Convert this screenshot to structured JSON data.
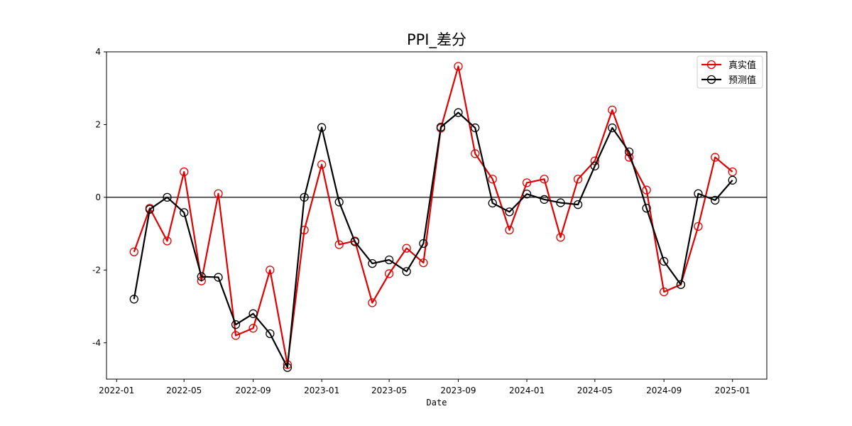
{
  "chart_data": {
    "type": "line",
    "title": "PPI_差分",
    "xlabel": "Date",
    "ylabel": "",
    "ylim": [
      -5.0,
      4.0
    ],
    "yticks": [
      -4,
      -2,
      0,
      2,
      4
    ],
    "xlim": [
      "2021-12-14",
      "2025-03-03"
    ],
    "xticks": [
      "2022-01",
      "2022-05",
      "2022-09",
      "2023-01",
      "2023-05",
      "2023-09",
      "2024-01",
      "2024-05",
      "2024-09",
      "2025-01"
    ],
    "zero_line": true,
    "grid": false,
    "legend_position": "top-right",
    "x": [
      "2022-02",
      "2022-03",
      "2022-04",
      "2022-05",
      "2022-06",
      "2022-07",
      "2022-08",
      "2022-09",
      "2022-10",
      "2022-11",
      "2022-12",
      "2023-01",
      "2023-02",
      "2023-03",
      "2023-04",
      "2023-05",
      "2023-06",
      "2023-07",
      "2023-08",
      "2023-09",
      "2023-10",
      "2023-11",
      "2023-12",
      "2024-01",
      "2024-02",
      "2024-03",
      "2024-04",
      "2024-05",
      "2024-06",
      "2024-07",
      "2024-08",
      "2024-09",
      "2024-10",
      "2024-11",
      "2024-12",
      "2025-01"
    ],
    "series": [
      {
        "name": "真实值",
        "color": "#e00000",
        "values": [
          -1.5,
          -0.3,
          -1.2,
          0.7,
          -2.3,
          0.1,
          -3.8,
          -3.6,
          -2.0,
          -4.6,
          -0.9,
          0.9,
          -1.3,
          -1.2,
          -2.9,
          -2.1,
          -1.4,
          -1.8,
          1.9,
          3.6,
          1.2,
          0.5,
          -0.9,
          0.4,
          0.5,
          -1.1,
          0.5,
          1.0,
          2.4,
          1.1,
          0.2,
          -2.6,
          -2.4,
          -0.8,
          1.1,
          0.7
        ]
      },
      {
        "name": "预测值",
        "color": "#000000",
        "values": [
          -2.8,
          -0.33,
          0.0,
          -0.42,
          -2.18,
          -2.2,
          -3.5,
          -3.2,
          -3.75,
          -4.68,
          0.0,
          1.92,
          -0.13,
          -1.22,
          -1.82,
          -1.72,
          -2.04,
          -1.27,
          1.93,
          2.33,
          1.91,
          -0.16,
          -0.4,
          0.09,
          -0.06,
          -0.15,
          -0.2,
          0.86,
          1.91,
          1.25,
          -0.3,
          -1.76,
          -2.4,
          0.1,
          -0.08,
          0.47
        ]
      }
    ]
  }
}
